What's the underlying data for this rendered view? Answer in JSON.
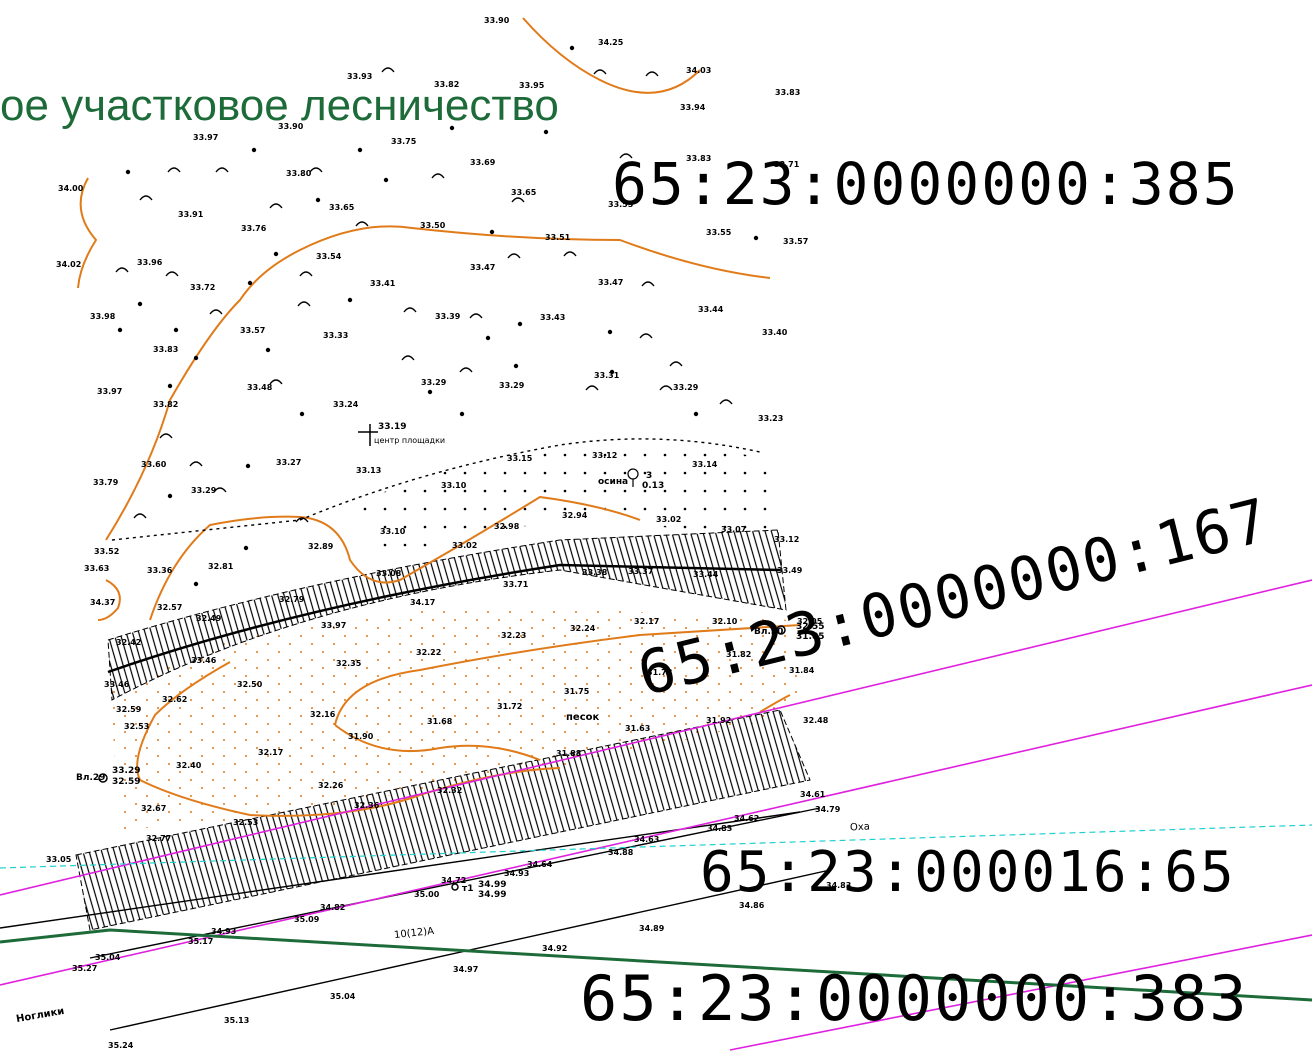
{
  "map": {
    "forestry_label": "ое участковое лесничество",
    "parcels": {
      "p385": "65:23:0000000:385",
      "p167": "65:23:0000000:167",
      "p16_65": "65:23:000016:65",
      "p383": "65:23:0000000:383"
    },
    "labels": {
      "center": "центр площадки",
      "center_elev": "33.19",
      "aspen": "осина",
      "aspen_num": "3",
      "aspen_d": "0.13",
      "sand": "песок",
      "okha": "Оха",
      "nogliki": "Ноглики",
      "road": "10(12)А",
      "well29": "Вл.29",
      "well29_a": "33.29",
      "well29_b": "32.59",
      "well30": "Вл.30",
      "well30_a": "32.55",
      "well30_b": "31.85",
      "t1": "т1",
      "t1_a": "34.99",
      "t1_b": "34.99"
    },
    "elevations": [
      [
        "33.90",
        484,
        16
      ],
      [
        "34.25",
        598,
        38
      ],
      [
        "33.93",
        347,
        72
      ],
      [
        "33.82",
        434,
        80
      ],
      [
        "33.95",
        519,
        81
      ],
      [
        "34.03",
        686,
        66
      ],
      [
        "33.83",
        775,
        88
      ],
      [
        "33.97",
        193,
        133
      ],
      [
        "33.90",
        278,
        122
      ],
      [
        "33.75",
        391,
        137
      ],
      [
        "33.94",
        680,
        103
      ],
      [
        "33.83",
        686,
        154
      ],
      [
        "33.71",
        774,
        160
      ],
      [
        "33.69",
        470,
        158
      ],
      [
        "33.80",
        286,
        169
      ],
      [
        "34.00",
        58,
        184
      ],
      [
        "33.91",
        178,
        210
      ],
      [
        "33.76",
        241,
        224
      ],
      [
        "33.65",
        329,
        203
      ],
      [
        "33.65",
        511,
        188
      ],
      [
        "33.55",
        608,
        200
      ],
      [
        "33.50",
        420,
        221
      ],
      [
        "33.51",
        545,
        233
      ],
      [
        "33.55",
        706,
        228
      ],
      [
        "33.57",
        783,
        237
      ],
      [
        "34.02",
        56,
        260
      ],
      [
        "33.96",
        137,
        258
      ],
      [
        "33.54",
        316,
        252
      ],
      [
        "33.47",
        470,
        263
      ],
      [
        "33.41",
        370,
        279
      ],
      [
        "33.47",
        598,
        278
      ],
      [
        "33.72",
        190,
        283
      ],
      [
        "33.98",
        90,
        312
      ],
      [
        "33.39",
        435,
        312
      ],
      [
        "33.43",
        540,
        313
      ],
      [
        "33.44",
        698,
        305
      ],
      [
        "33.57",
        240,
        326
      ],
      [
        "33.33",
        323,
        331
      ],
      [
        "33.40",
        762,
        328
      ],
      [
        "33.83",
        153,
        345
      ],
      [
        "33.48",
        247,
        383
      ],
      [
        "33.31",
        594,
        371
      ],
      [
        "33.29",
        421,
        378
      ],
      [
        "33.29",
        499,
        381
      ],
      [
        "33.29",
        673,
        383
      ],
      [
        "33.97",
        97,
        387
      ],
      [
        "33.82",
        153,
        400
      ],
      [
        "33.24",
        333,
        400
      ],
      [
        "33.23",
        758,
        414
      ],
      [
        "33.60",
        141,
        460
      ],
      [
        "33.27",
        276,
        458
      ],
      [
        "33.15",
        507,
        454
      ],
      [
        "33.12",
        592,
        451
      ],
      [
        "33.14",
        692,
        460
      ],
      [
        "33.13",
        356,
        466
      ],
      [
        "33.10",
        441,
        481
      ],
      [
        "33.79",
        93,
        478
      ],
      [
        "33.29",
        191,
        486
      ],
      [
        "33.02",
        656,
        515
      ],
      [
        "32.94",
        562,
        511
      ],
      [
        "32.98",
        494,
        522
      ],
      [
        "33.10",
        380,
        527
      ],
      [
        "33.07",
        721,
        525
      ],
      [
        "33.12",
        774,
        535
      ],
      [
        "32.89",
        308,
        542
      ],
      [
        "33.02",
        452,
        541
      ],
      [
        "33.52",
        94,
        547
      ],
      [
        "33.63",
        84,
        564
      ],
      [
        "33.36",
        147,
        566
      ],
      [
        "32.81",
        208,
        562
      ],
      [
        "33.08",
        376,
        569
      ],
      [
        "33.38",
        582,
        568
      ],
      [
        "33.37",
        628,
        567
      ],
      [
        "33.44",
        693,
        570
      ],
      [
        "33.49",
        777,
        566
      ],
      [
        "33.71",
        503,
        580
      ],
      [
        "34.37",
        90,
        598
      ],
      [
        "32.57",
        157,
        603
      ],
      [
        "32.79",
        279,
        595
      ],
      [
        "34.17",
        410,
        598
      ],
      [
        "32.49",
        196,
        614
      ],
      [
        "33.97",
        321,
        621
      ],
      [
        "32.24",
        570,
        624
      ],
      [
        "32.17",
        634,
        617
      ],
      [
        "32.10",
        712,
        617
      ],
      [
        "32.05",
        797,
        617
      ],
      [
        "32.42",
        116,
        638
      ],
      [
        "32.23",
        501,
        631
      ],
      [
        "33.46",
        191,
        656
      ],
      [
        "32.22",
        416,
        648
      ],
      [
        "32.35",
        336,
        659
      ],
      [
        "31.82",
        726,
        650
      ],
      [
        "31.84",
        789,
        666
      ],
      [
        "33.46",
        104,
        680
      ],
      [
        "31.78",
        647,
        668
      ],
      [
        "32.50",
        237,
        680
      ],
      [
        "32.62",
        162,
        695
      ],
      [
        "31.75",
        564,
        687
      ],
      [
        "32.59",
        116,
        705
      ],
      [
        "31.72",
        497,
        702
      ],
      [
        "32.16",
        310,
        710
      ],
      [
        "31.68",
        427,
        717
      ],
      [
        "31.63",
        625,
        724
      ],
      [
        "31.92",
        706,
        716
      ],
      [
        "32.48",
        803,
        716
      ],
      [
        "32.53",
        124,
        722
      ],
      [
        "31.90",
        348,
        732
      ],
      [
        "31.88",
        556,
        749
      ],
      [
        "32.17",
        258,
        748
      ],
      [
        "32.40",
        176,
        761
      ],
      [
        "32.26",
        318,
        781
      ],
      [
        "32.32",
        437,
        786
      ],
      [
        "32.67",
        141,
        804
      ],
      [
        "32.36",
        354,
        801
      ],
      [
        "32.53",
        233,
        818
      ],
      [
        "34.61",
        800,
        790
      ],
      [
        "34.79",
        815,
        805
      ],
      [
        "34.62",
        734,
        814
      ],
      [
        "34.83",
        707,
        824
      ],
      [
        "32.77",
        146,
        834
      ],
      [
        "34.63",
        634,
        835
      ],
      [
        "34.88",
        608,
        848
      ],
      [
        "33.05",
        46,
        855
      ],
      [
        "34.64",
        527,
        860
      ],
      [
        "34.72",
        441,
        876
      ],
      [
        "34.93",
        504,
        869
      ],
      [
        "35.00",
        414,
        890
      ],
      [
        "34.82",
        320,
        903
      ],
      [
        "35.09",
        294,
        915
      ],
      [
        "34.93",
        211,
        927
      ],
      [
        "35.17",
        188,
        937
      ],
      [
        "34.86",
        739,
        901
      ],
      [
        "34.89",
        639,
        924
      ],
      [
        "35.04",
        95,
        953
      ],
      [
        "34.92",
        542,
        944
      ],
      [
        "35.27",
        72,
        964
      ],
      [
        "34.97",
        453,
        965
      ],
      [
        "34.83",
        826,
        881
      ],
      [
        "35.04",
        330,
        992
      ],
      [
        "35.13",
        224,
        1016
      ],
      [
        "35.24",
        108,
        1041
      ]
    ]
  }
}
